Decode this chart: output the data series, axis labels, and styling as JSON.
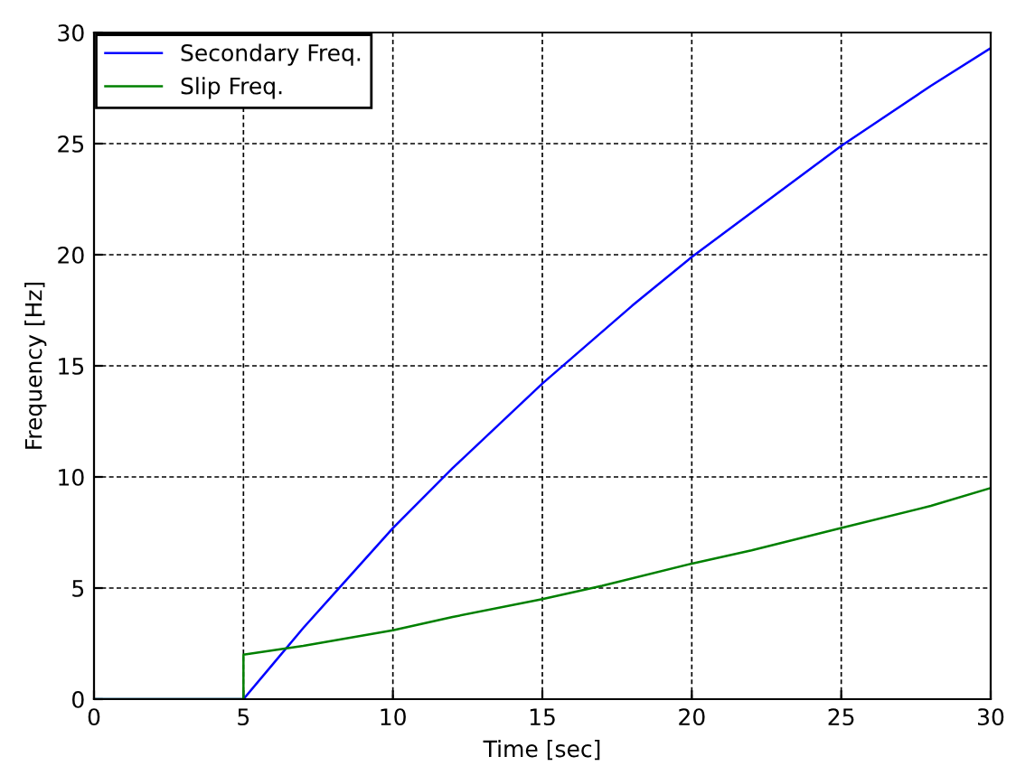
{
  "chart_data": {
    "type": "line",
    "xlabel": "Time [sec]",
    "ylabel": "Frequency [Hz]",
    "series": [
      {
        "name": "Secondary Freq.",
        "color": "#0000ff",
        "x": [
          0,
          5,
          6,
          7,
          8,
          10,
          12,
          15,
          18,
          20,
          22,
          25,
          28,
          30
        ],
        "values": [
          0,
          0,
          1.6,
          3.2,
          4.7,
          7.7,
          10.4,
          14.2,
          17.7,
          19.9,
          21.9,
          24.9,
          27.6,
          29.3
        ]
      },
      {
        "name": "Slip Freq.",
        "color": "#008000",
        "x": [
          0,
          5,
          5,
          7,
          10,
          12,
          15,
          17,
          20,
          22,
          25,
          28,
          30
        ],
        "values": [
          0,
          0,
          2.0,
          2.4,
          3.1,
          3.7,
          4.5,
          5.1,
          6.1,
          6.7,
          7.7,
          8.7,
          9.5
        ]
      }
    ],
    "xlim": [
      0,
      30
    ],
    "xticks": [
      0,
      5,
      10,
      15,
      20,
      25,
      30
    ],
    "ylim": [
      0,
      30
    ],
    "yticks": [
      0,
      5,
      10,
      15,
      20,
      25,
      30
    ],
    "grid": true,
    "legend": "top left",
    "line_style": "solid",
    "marker": "none"
  }
}
